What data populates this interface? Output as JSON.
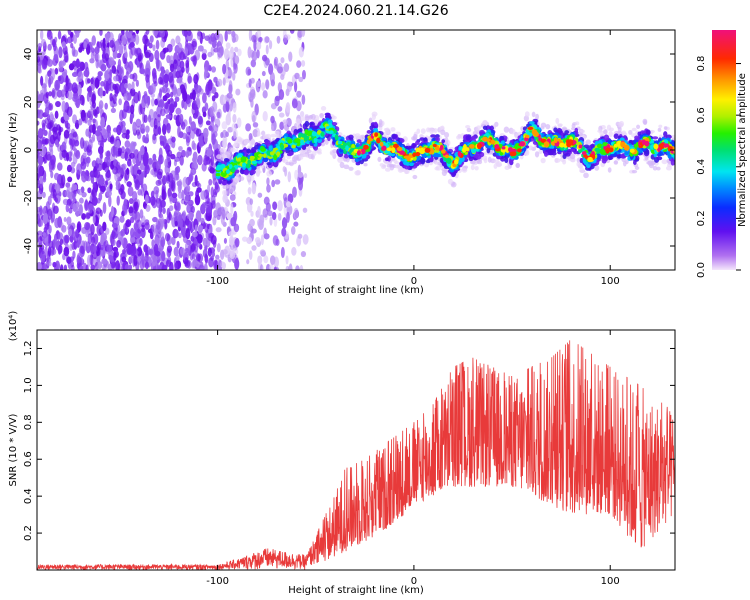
{
  "title": "C2E4.2024.060.21.14.G26",
  "chart_data": [
    {
      "type": "heatmap",
      "xlabel": "Height of straight line (km)",
      "ylabel": "Frequency (Hz)",
      "xlim": [
        -192,
        133
      ],
      "ylim": [
        -50,
        50
      ],
      "x_ticks": [
        -100,
        0,
        100
      ],
      "y_ticks": [
        -40,
        -20,
        0,
        20,
        40
      ],
      "colorbar": {
        "label": "Normalized spectral amplitude",
        "range": [
          0,
          0.93
        ],
        "ticks": [
          0.0,
          0.2,
          0.4,
          0.6,
          0.8
        ]
      },
      "grid": false,
      "signal_track": [
        {
          "x": -100,
          "y": -10
        },
        {
          "x": -90,
          "y": -6
        },
        {
          "x": -80,
          "y": -3
        },
        {
          "x": -70,
          "y": 0
        },
        {
          "x": -60,
          "y": 4
        },
        {
          "x": -50,
          "y": 6
        },
        {
          "x": -45,
          "y": 10
        },
        {
          "x": -40,
          "y": 5
        },
        {
          "x": -30,
          "y": -2
        },
        {
          "x": -20,
          "y": 5
        },
        {
          "x": -10,
          "y": 0
        },
        {
          "x": 0,
          "y": -3
        },
        {
          "x": 10,
          "y": 2
        },
        {
          "x": 20,
          "y": -5
        },
        {
          "x": 30,
          "y": 2
        },
        {
          "x": 40,
          "y": 4
        },
        {
          "x": 50,
          "y": -2
        },
        {
          "x": 60,
          "y": 8
        },
        {
          "x": 70,
          "y": 2
        },
        {
          "x": 80,
          "y": 4
        },
        {
          "x": 90,
          "y": -3
        },
        {
          "x": 100,
          "y": 2
        },
        {
          "x": 110,
          "y": 0
        },
        {
          "x": 120,
          "y": 3
        },
        {
          "x": 130,
          "y": 0
        }
      ]
    },
    {
      "type": "line",
      "xlabel": "Height of straight line (km)",
      "ylabel": "SNR (10 * V/V)",
      "y_multiplier": "(x10⁴)",
      "xlim": [
        -192,
        133
      ],
      "ylim": [
        0,
        1.3
      ],
      "x_ticks": [
        -100,
        0,
        100
      ],
      "y_ticks": [
        0.2,
        0.4,
        0.6,
        0.8,
        1.0,
        1.2
      ],
      "grid": false,
      "series_color": "#e83a3a",
      "envelope": [
        {
          "x": -192,
          "low": 0.0,
          "high": 0.03
        },
        {
          "x": -100,
          "low": 0.0,
          "high": 0.03
        },
        {
          "x": -90,
          "low": 0.0,
          "high": 0.06
        },
        {
          "x": -75,
          "low": 0.0,
          "high": 0.12
        },
        {
          "x": -55,
          "low": 0.0,
          "high": 0.08
        },
        {
          "x": -45,
          "low": 0.05,
          "high": 0.3
        },
        {
          "x": -35,
          "low": 0.1,
          "high": 0.55
        },
        {
          "x": -25,
          "low": 0.15,
          "high": 0.6
        },
        {
          "x": -10,
          "low": 0.25,
          "high": 0.72
        },
        {
          "x": 0,
          "low": 0.35,
          "high": 0.8
        },
        {
          "x": 10,
          "low": 0.4,
          "high": 0.9
        },
        {
          "x": 20,
          "low": 0.45,
          "high": 1.1
        },
        {
          "x": 30,
          "low": 0.45,
          "high": 1.15
        },
        {
          "x": 50,
          "low": 0.45,
          "high": 1.05
        },
        {
          "x": 70,
          "low": 0.35,
          "high": 1.15
        },
        {
          "x": 80,
          "low": 0.3,
          "high": 1.25
        },
        {
          "x": 100,
          "low": 0.3,
          "high": 1.1
        },
        {
          "x": 115,
          "low": 0.1,
          "high": 1.0
        },
        {
          "x": 133,
          "low": 0.3,
          "high": 0.85
        }
      ]
    }
  ]
}
